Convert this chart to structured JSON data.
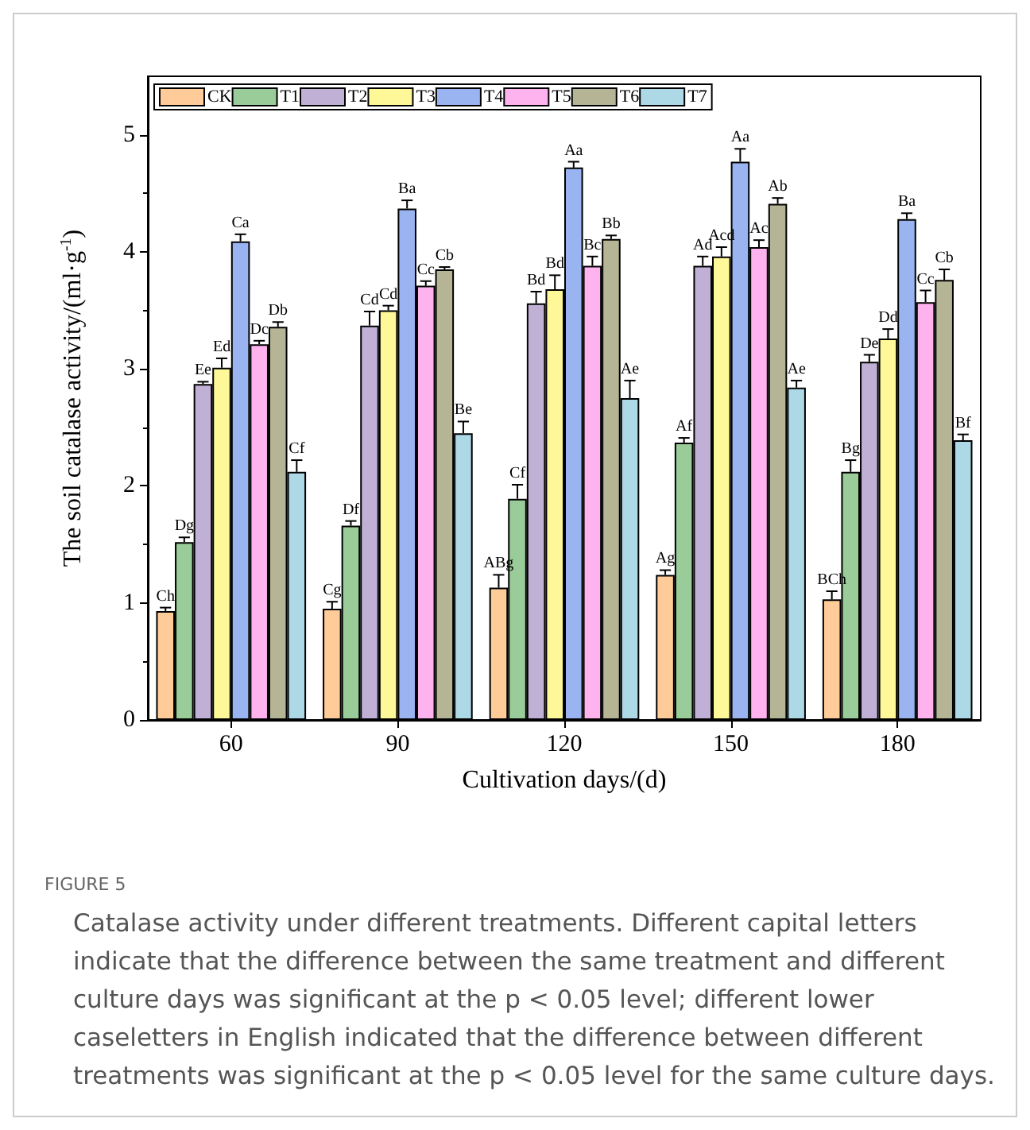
{
  "chart_data": {
    "type": "bar",
    "title": "FIGURE 5",
    "xlabel": "Cultivation days/(d)",
    "ylabel": "The soil catalase activity/(ml·g$^{-1}$)",
    "categories": [
      "60",
      "90",
      "120",
      "150",
      "180"
    ],
    "series": [
      {
        "name": "CK",
        "color": "#ffcc99",
        "values": [
          0.93,
          0.95,
          1.13,
          1.24,
          1.03
        ],
        "errors": [
          0.03,
          0.06,
          0.11,
          0.04,
          0.07
        ],
        "value_labels": [
          "Ch",
          "Cg",
          "ABg",
          "Ag",
          "BCh"
        ]
      },
      {
        "name": "T1",
        "color": "#99cc99",
        "values": [
          1.52,
          1.66,
          1.89,
          2.37,
          2.12
        ],
        "errors": [
          0.04,
          0.04,
          0.12,
          0.04,
          0.1
        ],
        "value_labels": [
          "Dg",
          "Df",
          "Cf",
          "Af",
          "Bg"
        ]
      },
      {
        "name": "T2",
        "color": "#c0b0d6",
        "values": [
          2.87,
          3.37,
          3.56,
          3.88,
          3.06
        ],
        "errors": [
          0.02,
          0.12,
          0.1,
          0.08,
          0.06
        ],
        "value_labels": [
          "Ee",
          "Cd",
          "Bd",
          "Ad",
          "De"
        ]
      },
      {
        "name": "T3",
        "color": "#fff899",
        "values": [
          3.01,
          3.5,
          3.68,
          3.96,
          3.26
        ],
        "errors": [
          0.08,
          0.04,
          0.12,
          0.08,
          0.08
        ],
        "value_labels": [
          "Ed",
          "Cd",
          "Bd",
          "Acd",
          "Dd"
        ]
      },
      {
        "name": "T4",
        "color": "#99b4f0",
        "values": [
          4.09,
          4.37,
          4.72,
          4.77,
          4.28
        ],
        "errors": [
          0.06,
          0.07,
          0.05,
          0.11,
          0.05
        ],
        "value_labels": [
          "Ca",
          "Ba",
          "Aa",
          "Aa",
          "Ba"
        ]
      },
      {
        "name": "T5",
        "color": "#ffb3ee",
        "values": [
          3.21,
          3.71,
          3.88,
          4.04,
          3.57
        ],
        "errors": [
          0.03,
          0.04,
          0.08,
          0.06,
          0.1
        ],
        "value_labels": [
          "Dc",
          "Cc",
          "Bc",
          "Ac",
          "Cc"
        ]
      },
      {
        "name": "T6",
        "color": "#b5b596",
        "values": [
          3.36,
          3.85,
          4.11,
          4.41,
          3.76
        ],
        "errors": [
          0.04,
          0.02,
          0.03,
          0.05,
          0.09
        ],
        "value_labels": [
          "Db",
          "Cb",
          "Bb",
          "Ab",
          "Cb"
        ]
      },
      {
        "name": "T7",
        "color": "#add8e6",
        "values": [
          2.12,
          2.45,
          2.75,
          2.84,
          2.39
        ],
        "errors": [
          0.1,
          0.1,
          0.15,
          0.06,
          0.05
        ],
        "value_labels": [
          "Cf",
          "Be",
          "Ae",
          "Ae",
          "Bf"
        ]
      }
    ],
    "ylim": [
      0,
      5.5
    ],
    "yticks": [
      0,
      1,
      2,
      3,
      4,
      5
    ],
    "grid": false,
    "legend": "top left",
    "annotations": [
      "Catalase activity under different treatments. Different capital letters indicate that the difference between the same treatment and different culture days was significant at the p < 0.05 level; different lower caseletters in English indicated that the difference between different treatments was significant at the p < 0.05 level for the same culture days."
    ]
  }
}
